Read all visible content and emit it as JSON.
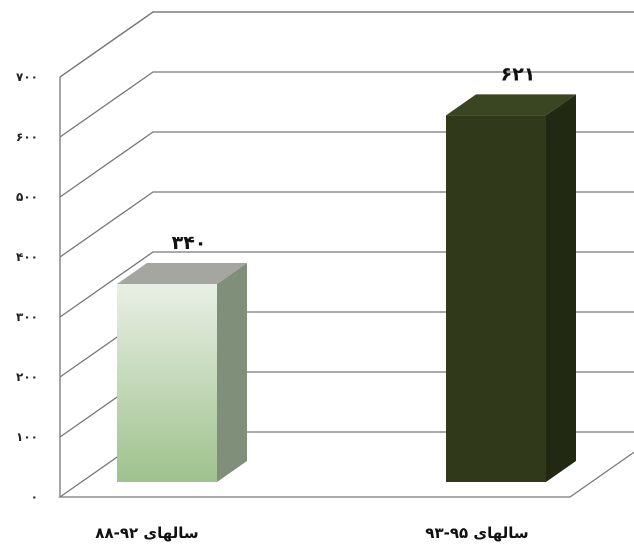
{
  "chart_data": {
    "type": "bar",
    "categories": [
      "سالهای ۹۲-۸۸",
      "سالهای ۹۵-۹۳"
    ],
    "values": [
      340,
      621
    ],
    "value_labels": [
      "۳۴۰",
      "۶۲۱"
    ],
    "ylim": [
      0,
      700
    ],
    "yticks": [
      0,
      100,
      200,
      300,
      400,
      500,
      600,
      700
    ],
    "ytick_labels": [
      "۰",
      "۱۰۰",
      "۲۰۰",
      "۳۰۰",
      "۴۰۰",
      "۵۰۰",
      "۶۰۰",
      "۷۰۰"
    ],
    "grid": true,
    "style": "3d",
    "legend": "none",
    "colors": {
      "bar1_top": "#e9efe5",
      "bar1_bottom": "#9ec28d",
      "bar1_side": "#7f8f7a",
      "bar1_cap": "#a4a69f",
      "bar2_front": "#30391a",
      "bar2_side": "#222913",
      "bar2_cap": "#3a4521"
    }
  }
}
